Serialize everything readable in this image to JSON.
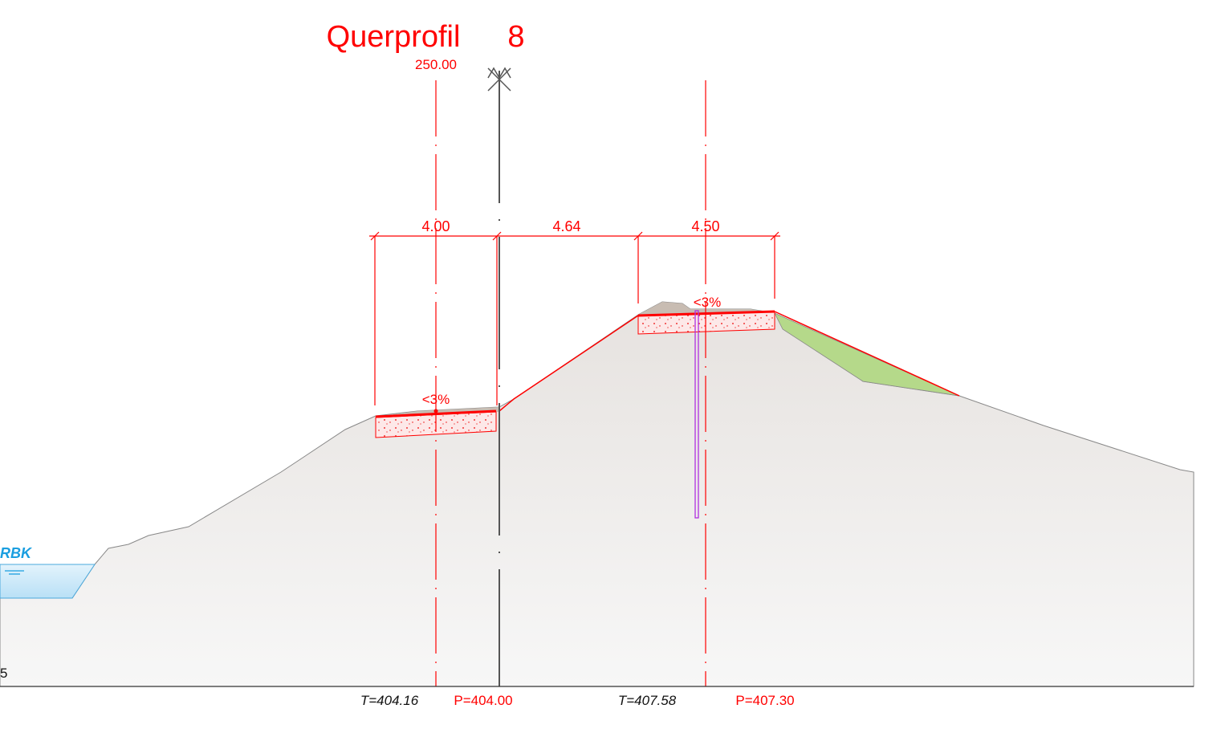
{
  "header": {
    "title": "Querprofil",
    "profile_number": "8",
    "station": "250.00"
  },
  "dimensions": [
    "4.00",
    "4.64",
    "4.50"
  ],
  "slopes": [
    "<3%",
    "<3%"
  ],
  "water": {
    "label": "RBK"
  },
  "left_edge_label": "5",
  "footer": {
    "left_terrain": "T=404.16",
    "left_planned": "P=404.00",
    "right_terrain": "T=407.58",
    "right_planned": "P=407.30"
  }
}
